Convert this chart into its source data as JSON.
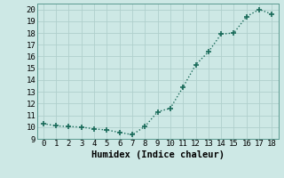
{
  "x": [
    0,
    1,
    2,
    3,
    4,
    5,
    6,
    7,
    8,
    9,
    10,
    11,
    12,
    13,
    14,
    15,
    16,
    17,
    18
  ],
  "y": [
    10.3,
    10.1,
    10.05,
    10.0,
    9.85,
    9.75,
    9.55,
    9.35,
    10.05,
    11.3,
    11.6,
    13.4,
    15.3,
    16.4,
    17.9,
    18.0,
    19.4,
    20.0,
    19.6
  ],
  "line_color": "#1a6b5a",
  "marker": "+",
  "marker_size": 4,
  "linewidth": 1.0,
  "xlabel": "Humidex (Indice chaleur)",
  "xlim": [
    -0.5,
    18.5
  ],
  "ylim": [
    9.0,
    20.5
  ],
  "yticks": [
    9,
    10,
    11,
    12,
    13,
    14,
    15,
    16,
    17,
    18,
    19,
    20
  ],
  "xticks": [
    0,
    1,
    2,
    3,
    4,
    5,
    6,
    7,
    8,
    9,
    10,
    11,
    12,
    13,
    14,
    15,
    16,
    17,
    18
  ],
  "background_color": "#cde8e5",
  "grid_color": "#b0d0cc",
  "tick_label_fontsize": 6.5,
  "xlabel_fontsize": 7.5,
  "linestyle": ":"
}
